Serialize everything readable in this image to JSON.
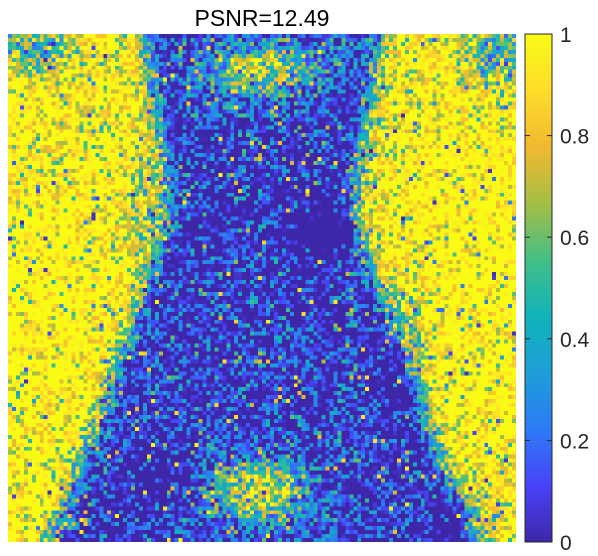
{
  "chart_data": {
    "type": "heatmap",
    "title": "PSNR=12.49",
    "xlabel": "",
    "ylabel": "",
    "colormap": "parula",
    "colormap_stops": [
      "#3e26a8",
      "#4743f8",
      "#2c7bf5",
      "#1e9ed8",
      "#10b4b9",
      "#44bf86",
      "#a4be45",
      "#f2b930",
      "#fedd2a",
      "#f9fb15"
    ],
    "clim": [
      0,
      1
    ],
    "colorbar": {
      "ticks": [
        0,
        0.2,
        0.4,
        0.6,
        0.8,
        1
      ],
      "tick_labels": [
        "0",
        "0.2",
        "0.4",
        "0.6",
        "0.8",
        "1"
      ],
      "location": "right"
    },
    "grid_size": [
      128,
      128
    ],
    "description_of_field": "noisy reconstruction: bright (≈0.8–1) regions in corners and sides, dark (≈0–0.2) hourglass-shaped central region with a bright blob near bottom center and a bright blob at top center",
    "noise_seed": 12345
  }
}
